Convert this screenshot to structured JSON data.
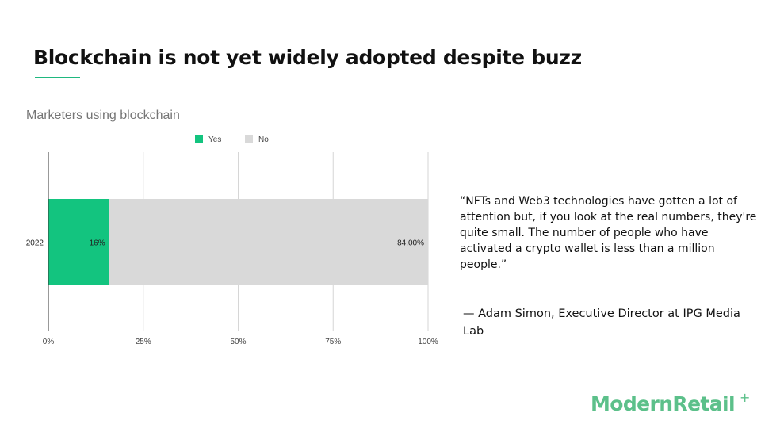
{
  "slide": {
    "title": "Blockchain is not yet widely adopted despite buzz",
    "accent_color": "#1fb87f"
  },
  "chart_data": {
    "type": "bar",
    "orientation": "horizontal",
    "stacked": true,
    "title": "Marketers using blockchain",
    "categories": [
      "2022"
    ],
    "series": [
      {
        "name": "Yes",
        "values": [
          16
        ],
        "label": "16%",
        "color": "#13c47f"
      },
      {
        "name": "No",
        "values": [
          84
        ],
        "label": "84.00%",
        "color": "#d9d9d9"
      }
    ],
    "xlim": [
      0,
      100
    ],
    "x_ticks": [
      "0%",
      "25%",
      "50%",
      "75%",
      "100%"
    ],
    "x_tick_values": [
      0,
      25,
      50,
      75,
      100
    ],
    "grid": true,
    "legend_position": "top"
  },
  "quote": {
    "text": "“NFTs and Web3 technologies have gotten a lot of attention but, if you look at the real numbers, they're quite small. The number of people who have activated a crypto wallet is less than a million people.”",
    "attribution": "— Adam Simon, Executive Director at IPG Media Lab"
  },
  "brand": {
    "logo_text": "ModernRetail",
    "logo_mark": "+",
    "color": "#5cc08a"
  }
}
